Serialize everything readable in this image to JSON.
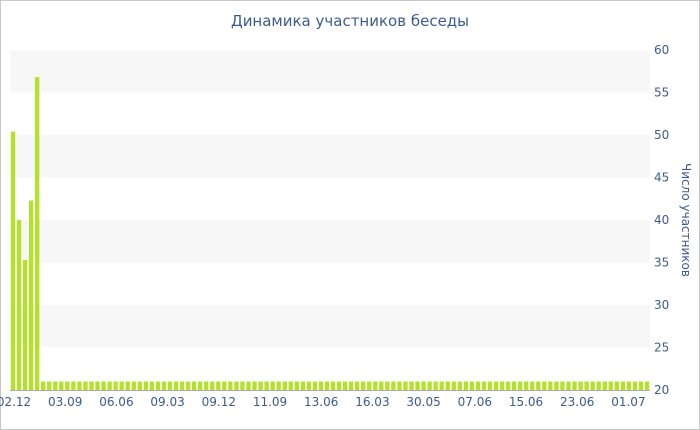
{
  "chart_data": {
    "type": "bar",
    "title": "Динамика участников беседы",
    "ylabel": "Число участников",
    "ylim": [
      20,
      60
    ],
    "yticks": [
      20,
      25,
      30,
      35,
      40,
      45,
      50,
      55,
      60
    ],
    "y_axis_position": "right",
    "xtick_labels": [
      "02.12",
      "03.09",
      "06.06",
      "09.03",
      "09.12",
      "11.09",
      "13.06",
      "16.03",
      "30.05",
      "07.06",
      "15.06",
      "23.06",
      "01.07"
    ],
    "values": [
      50.4,
      40,
      35.3,
      42.3,
      56.8,
      21,
      21,
      21,
      21,
      21,
      21,
      21,
      21,
      21,
      21,
      21,
      21,
      21,
      21,
      21,
      21,
      21,
      21,
      21,
      21,
      21,
      21,
      21,
      21,
      21,
      21,
      21,
      21,
      21,
      21,
      21,
      21,
      21,
      21,
      21,
      21,
      21,
      21,
      21,
      21,
      21,
      21,
      21,
      21,
      21,
      21,
      21,
      21,
      21,
      21,
      21,
      21,
      21,
      21,
      21,
      21,
      21,
      21,
      21,
      21,
      21,
      21,
      21,
      21,
      21,
      21,
      21,
      21,
      21,
      21,
      21,
      21,
      21,
      21,
      21,
      21,
      21,
      21,
      21,
      21,
      21,
      21,
      21,
      21,
      21,
      21,
      21,
      21,
      21,
      21,
      21,
      21,
      21,
      21,
      21,
      21,
      21,
      21,
      21,
      21,
      21
    ],
    "bar_color": "#b5e02d",
    "band_color": "#f7f7f7",
    "text_color": "#3d5a8e"
  }
}
